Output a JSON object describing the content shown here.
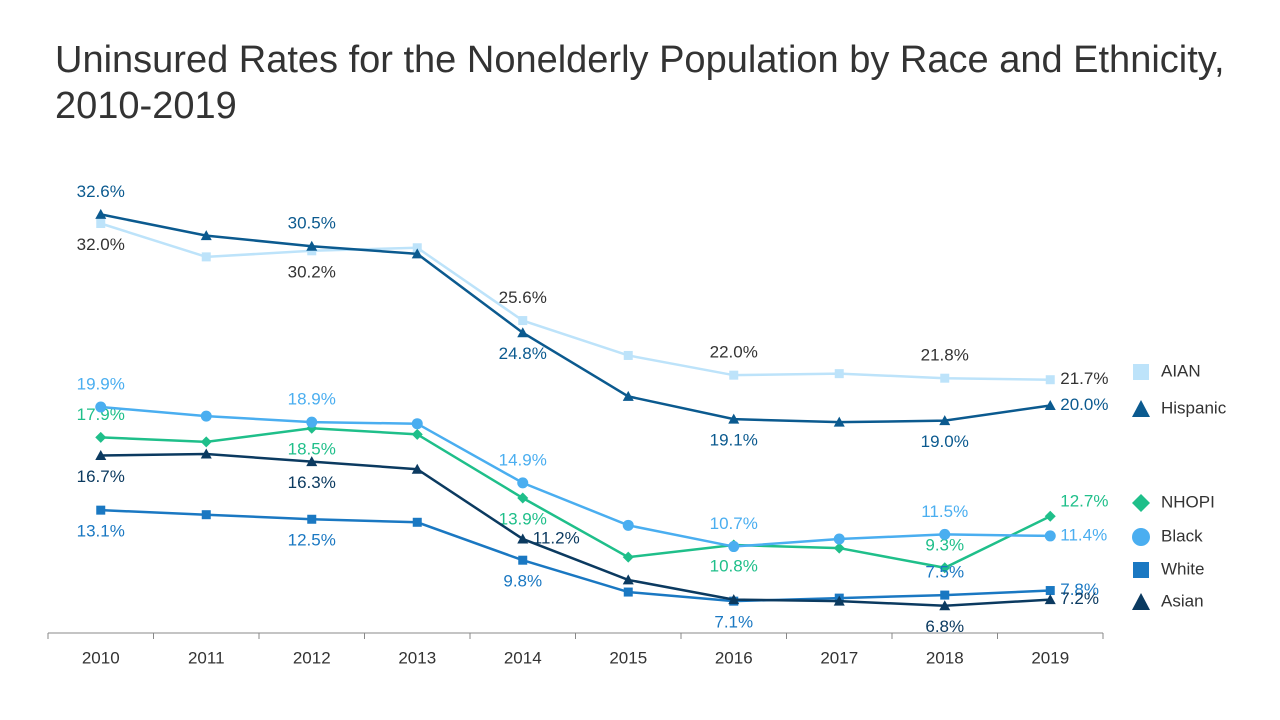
{
  "chart_data": {
    "type": "line",
    "title": "Uninsured Rates for the Nonelderly Population by Race and Ethnicity, 2010-2019",
    "categories": [
      "2010",
      "2011",
      "2012",
      "2013",
      "2014",
      "2015",
      "2016",
      "2017",
      "2018",
      "2019"
    ],
    "ylim": [
      5,
      35
    ],
    "series": [
      {
        "name": "AIAN",
        "color": "#bde3fa",
        "label_color": "#333333",
        "marker": "square",
        "values": [
          32.0,
          29.8,
          30.2,
          30.4,
          25.6,
          23.3,
          22.0,
          22.1,
          21.8,
          21.7
        ],
        "value_labels": [
          "32.0%",
          null,
          "30.2%",
          null,
          "25.6%",
          null,
          "22.0%",
          null,
          "21.8%",
          "21.7%"
        ]
      },
      {
        "name": "Hispanic",
        "color": "#0b5a8f",
        "label_color": "#0b5a8f",
        "marker": "triangle",
        "values": [
          32.6,
          31.2,
          30.5,
          30.0,
          24.8,
          20.6,
          19.1,
          18.9,
          19.0,
          20.0
        ],
        "value_labels": [
          "32.6%",
          null,
          "30.5%",
          null,
          "24.8%",
          null,
          "19.1%",
          null,
          "19.0%",
          "20.0%"
        ]
      },
      {
        "name": "NHOPI",
        "color": "#1fbf8a",
        "label_color": "#1fbf8a",
        "marker": "diamond",
        "values": [
          17.9,
          17.6,
          18.5,
          18.1,
          13.9,
          10.0,
          10.8,
          10.6,
          9.3,
          12.7
        ],
        "value_labels": [
          "17.9%",
          null,
          "18.5%",
          null,
          "13.9%",
          null,
          "10.8%",
          null,
          "9.3%",
          "12.7%"
        ]
      },
      {
        "name": "Black",
        "color": "#4aaef0",
        "label_color": "#4aaef0",
        "marker": "circle",
        "values": [
          19.9,
          19.3,
          18.9,
          18.8,
          14.9,
          12.1,
          10.7,
          11.2,
          11.5,
          11.4
        ],
        "value_labels": [
          "19.9%",
          null,
          "18.9%",
          null,
          "14.9%",
          null,
          "10.7%",
          null,
          "11.5%",
          "11.4%"
        ]
      },
      {
        "name": "White",
        "color": "#1a78c2",
        "label_color": "#1a78c2",
        "marker": "square",
        "values": [
          13.1,
          12.8,
          12.5,
          12.3,
          9.8,
          7.7,
          7.1,
          7.3,
          7.5,
          7.8
        ],
        "value_labels": [
          "13.1%",
          null,
          "12.5%",
          null,
          "9.8%",
          null,
          "7.1%",
          null,
          "7.5%",
          "7.8%"
        ]
      },
      {
        "name": "Asian",
        "color": "#0b3a60",
        "label_color": "#0b3a60",
        "marker": "triangle",
        "values": [
          16.7,
          16.8,
          16.3,
          15.8,
          11.2,
          8.5,
          7.2,
          7.1,
          6.8,
          7.2
        ],
        "value_labels": [
          "16.7%",
          null,
          "16.3%",
          null,
          "11.2%",
          null,
          null,
          null,
          "6.8%",
          "7.2%"
        ]
      }
    ]
  }
}
